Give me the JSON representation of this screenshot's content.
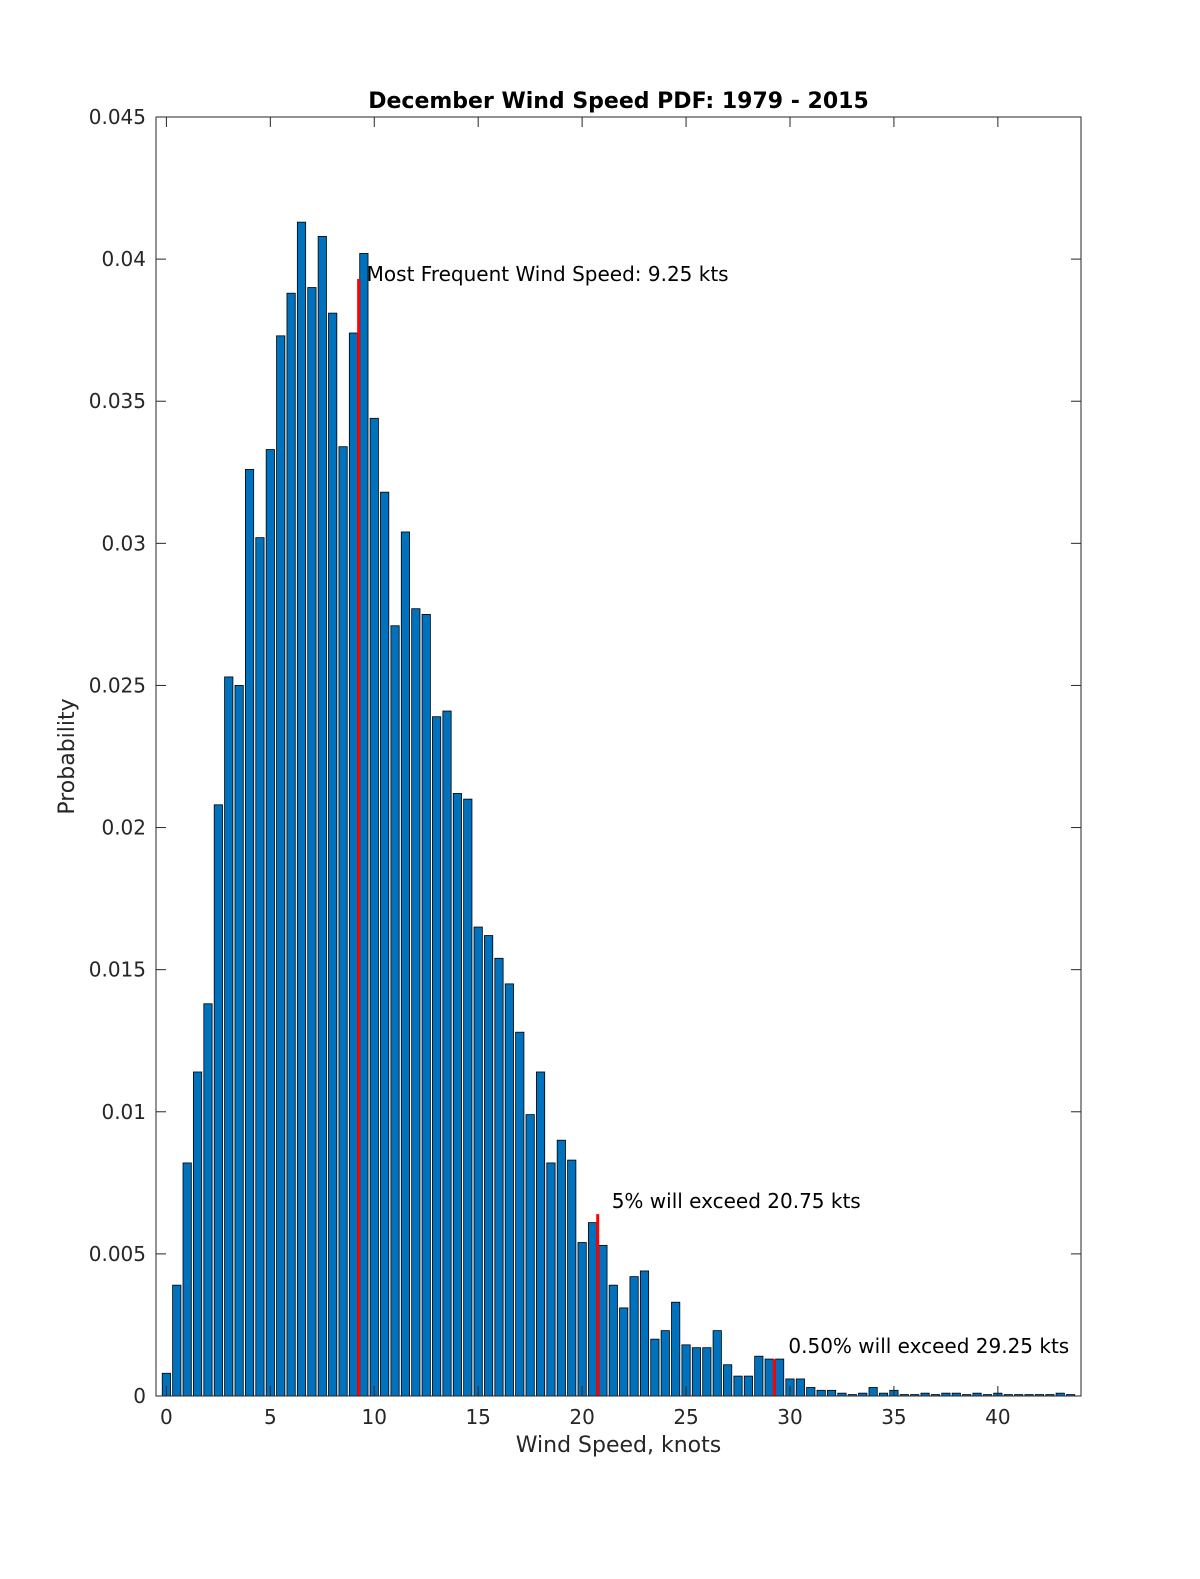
{
  "chart_data": {
    "type": "bar",
    "title": "December Wind Speed PDF: 1979 - 2015",
    "xlabel": "Wind Speed, knots",
    "ylabel": "Probability",
    "xlim": [
      -0.5,
      44
    ],
    "ylim": [
      0,
      0.045
    ],
    "x_ticks": [
      0,
      5,
      10,
      15,
      20,
      25,
      30,
      35,
      40
    ],
    "y_ticks": [
      0,
      0.005,
      0.01,
      0.015,
      0.02,
      0.025,
      0.03,
      0.035,
      0.04,
      0.045
    ],
    "x_tick_labels": [
      "0",
      "5",
      "10",
      "15",
      "20",
      "25",
      "30",
      "35",
      "40"
    ],
    "y_tick_labels": [
      "0",
      "0.005",
      "0.01",
      "0.015",
      "0.02",
      "0.025",
      "0.03",
      "0.035",
      "0.04",
      "0.045"
    ],
    "bar_color": "#0072BD",
    "bar_width": 0.4,
    "grid": false,
    "x": [
      0,
      0.5,
      1,
      1.5,
      2,
      2.5,
      3,
      3.5,
      4,
      4.5,
      5,
      5.5,
      6,
      6.5,
      7,
      7.5,
      8,
      8.5,
      9,
      9.5,
      10,
      10.5,
      11,
      11.5,
      12,
      12.5,
      13,
      13.5,
      14,
      14.5,
      15,
      15.5,
      16,
      16.5,
      17,
      17.5,
      18,
      18.5,
      19,
      19.5,
      20,
      20.5,
      21,
      21.5,
      22,
      22.5,
      23,
      23.5,
      24,
      24.5,
      25,
      25.5,
      26,
      26.5,
      27,
      27.5,
      28,
      28.5,
      29,
      29.5,
      30,
      30.5,
      31,
      31.5,
      32,
      32.5,
      33,
      33.5,
      34,
      34.5,
      35,
      35.5,
      36,
      36.5,
      37,
      37.5,
      38,
      38.5,
      39,
      39.5,
      40,
      40.5,
      41,
      41.5,
      42,
      42.5,
      43,
      43.5
    ],
    "values": [
      0.0008,
      0.0039,
      0.0082,
      0.0114,
      0.0138,
      0.0208,
      0.0253,
      0.025,
      0.0326,
      0.0302,
      0.0333,
      0.0373,
      0.0388,
      0.0413,
      0.039,
      0.0408,
      0.0381,
      0.0334,
      0.0374,
      0.0402,
      0.0344,
      0.0318,
      0.0271,
      0.0304,
      0.0277,
      0.0275,
      0.0239,
      0.0241,
      0.0212,
      0.021,
      0.0165,
      0.0162,
      0.0154,
      0.0145,
      0.0128,
      0.0099,
      0.0114,
      0.0082,
      0.009,
      0.0083,
      0.0054,
      0.0061,
      0.0053,
      0.0039,
      0.0031,
      0.0042,
      0.0044,
      0.002,
      0.0023,
      0.0033,
      0.0018,
      0.0017,
      0.0017,
      0.0023,
      0.0011,
      0.0007,
      0.0007,
      0.0014,
      0.0013,
      0.0013,
      0.0006,
      0.0006,
      0.0003,
      0.0002,
      0.0002,
      0.0001,
      5e-05,
      0.0001,
      0.0003,
      0.0001,
      0.0002,
      5e-05,
      5e-05,
      0.0001,
      5e-05,
      0.0001,
      0.0001,
      5e-05,
      0.0001,
      5e-05,
      0.0001,
      5e-05,
      5e-05,
      5e-05,
      5e-05,
      5e-05,
      0.0001,
      5e-05
    ],
    "markers": [
      {
        "x": 9.25,
        "y": 0.0393,
        "color": "#FF0000",
        "label": "Most Frequent Wind Speed: 9.25 kts"
      },
      {
        "x": 20.75,
        "y": 0.0064,
        "color": "#FF0000",
        "label": "5% will exceed 20.75 kts"
      },
      {
        "x": 29.25,
        "y": 0.0013,
        "color": "#FF0000",
        "label": "0.50% will exceed 29.25 kts"
      }
    ]
  }
}
